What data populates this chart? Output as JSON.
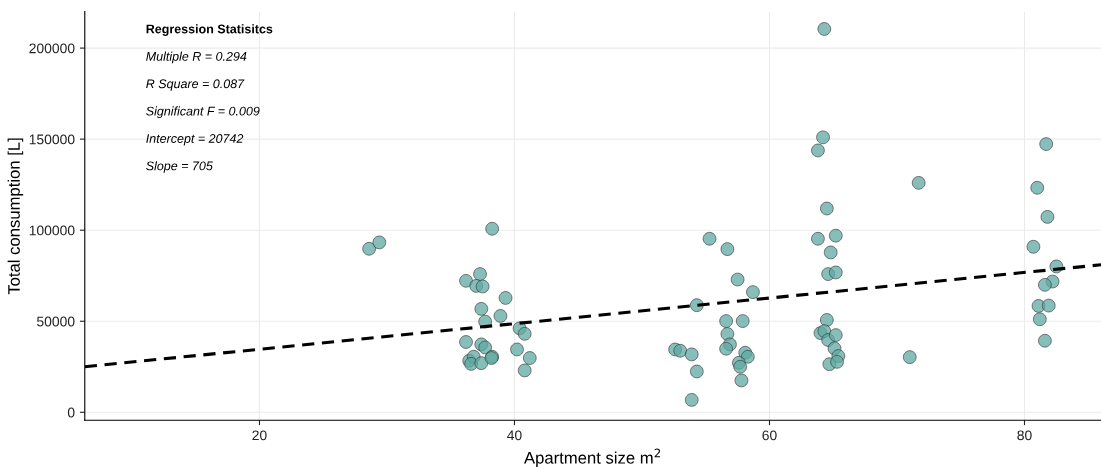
{
  "chart_data": {
    "type": "scatter",
    "xlabel": "Apartment size m$^{2}$",
    "ylabel": "Total consumption [L]",
    "annotations": [
      "Regression Statisitcs",
      "Multiple R = 0.294",
      "R Square = 0.087",
      "Significant F = 0.009",
      "Intercept = 20742",
      "Slope = 705"
    ],
    "xlim": [
      6.3,
      86
    ],
    "xticks": [
      20,
      40,
      60,
      80
    ],
    "ylim": [
      -4400,
      220000
    ],
    "yticks": [
      0,
      50000,
      100000,
      150000,
      200000
    ],
    "grid": true,
    "series": [
      {
        "marker": "circle",
        "color": "#5fa8a2",
        "x": [
          28.6,
          29.4,
          38.25,
          36.2,
          37.3,
          37.0,
          37.5,
          37.4,
          37.7,
          39.3,
          38.9,
          36.2,
          37.4,
          37.7,
          36.45,
          36.8,
          36.6,
          37.4,
          38.25,
          38.2,
          40.4,
          40.8,
          40.2,
          41.2,
          40.8,
          55.3,
          56.7,
          57.5,
          58.7,
          54.3,
          56.6,
          57.9,
          56.7,
          56.9,
          56.6,
          52.6,
          53.0,
          53.9,
          58.1,
          58.3,
          57.6,
          57.7,
          54.3,
          57.8,
          53.9,
          63.8,
          65.2,
          64.8,
          64.6,
          65.2,
          64.5,
          64.0,
          64.3,
          64.6,
          65.2,
          65.1,
          65.4,
          64.7,
          65.3,
          64.3,
          64.2,
          63.8,
          64.5,
          71.7,
          71.0,
          81.7,
          81.0,
          81.8,
          80.7,
          82.5,
          82.2,
          81.6,
          81.1,
          81.9,
          81.2,
          81.6
        ],
        "values": [
          89800,
          93300,
          100800,
          72200,
          75900,
          69400,
          69100,
          56800,
          49800,
          62800,
          52900,
          38600,
          37300,
          35600,
          28300,
          30500,
          26600,
          27000,
          30500,
          29800,
          46100,
          43100,
          34500,
          29800,
          23000,
          95300,
          89600,
          72900,
          66000,
          58800,
          50100,
          50100,
          43000,
          37300,
          34900,
          34500,
          33800,
          31800,
          32700,
          30500,
          27200,
          25000,
          22400,
          17500,
          6800,
          95300,
          97000,
          87800,
          75900,
          76800,
          50700,
          43500,
          44600,
          39700,
          42400,
          35100,
          30900,
          26400,
          27700,
          210500,
          151000,
          143800,
          111900,
          126000,
          30300,
          147300,
          123300,
          107300,
          90900,
          80100,
          71800,
          70000,
          58400,
          58600,
          51100,
          39300
        ]
      },
      {
        "type": "line",
        "color": "#000000",
        "line_style": "dashed",
        "x": [
          6.3,
          86
        ],
        "values": [
          25000,
          81000
        ]
      }
    ]
  }
}
